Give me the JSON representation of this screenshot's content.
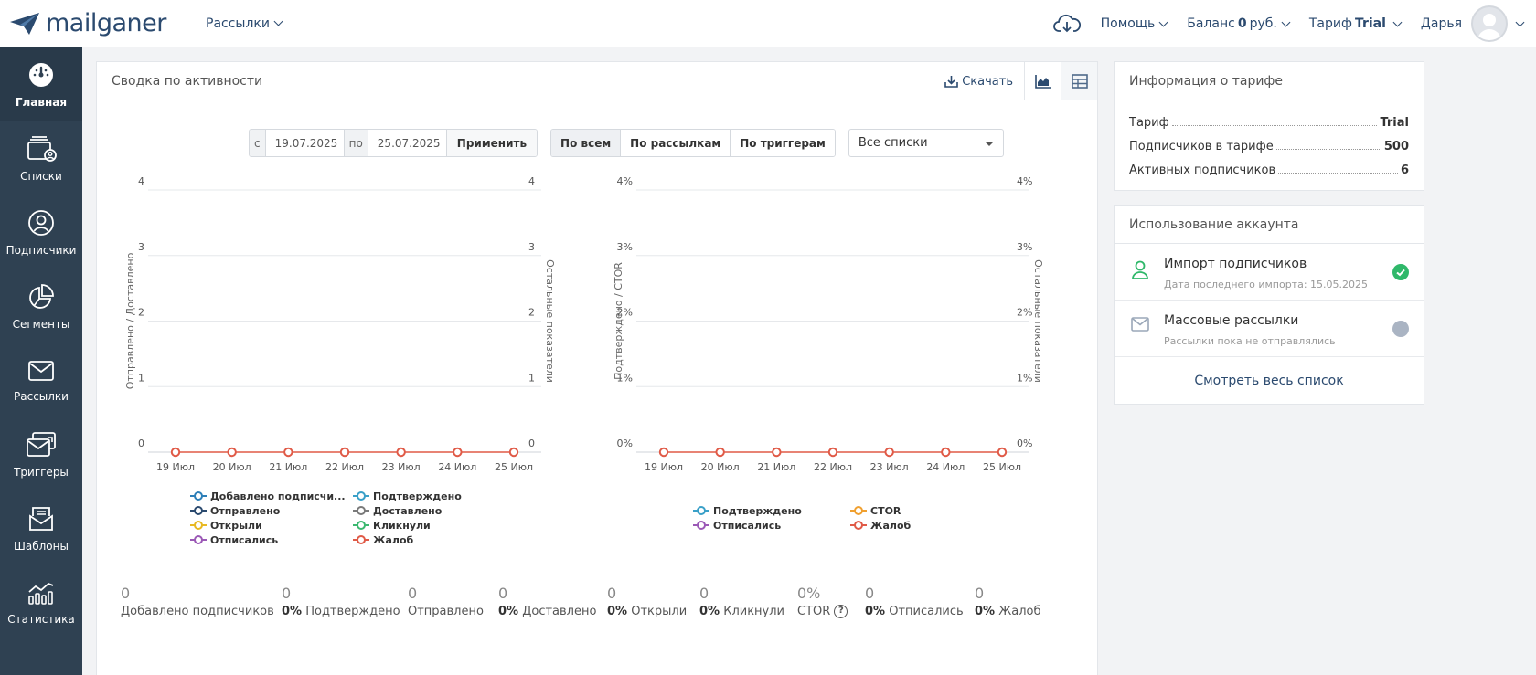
{
  "header": {
    "logo": "mailganer",
    "nav_mailings": "Рассылки",
    "help": "Помощь",
    "balance_label": "Баланс",
    "balance_value": "0",
    "balance_unit": "руб.",
    "tariff_label": "Тариф",
    "tariff_value": "Trial",
    "user": "Дарья"
  },
  "sidebar": {
    "items": [
      {
        "label": "Главная",
        "icon": "dashboard-icon",
        "active": true
      },
      {
        "label": "Списки",
        "icon": "lists-icon"
      },
      {
        "label": "Подписчики",
        "icon": "subscribers-icon"
      },
      {
        "label": "Сегменты",
        "icon": "segments-icon"
      },
      {
        "label": "Рассылки",
        "icon": "mail-icon"
      },
      {
        "label": "Триггеры",
        "icon": "triggers-icon"
      },
      {
        "label": "Шаблоны",
        "icon": "templates-icon"
      },
      {
        "label": "Статистика",
        "icon": "statistics-icon"
      }
    ]
  },
  "activity": {
    "title": "Сводка по активности",
    "download": "Скачать",
    "filters": {
      "from_label": "с",
      "from_value": "19.07.2025",
      "to_label": "по",
      "to_value": "25.07.2025",
      "apply": "Применить",
      "seg": [
        "По всем",
        "По рассылкам",
        "По триггерам"
      ],
      "list_select": "Все списки"
    },
    "legend_left": [
      {
        "label": "Добавлено подписчи...",
        "color": "#2d7fb8"
      },
      {
        "label": "Подтверждено",
        "color": "#3aa0c8"
      },
      {
        "label": "Отправлено",
        "color": "#2b4a6f"
      },
      {
        "label": "Доставлено",
        "color": "#7a7a7a"
      },
      {
        "label": "Открыли",
        "color": "#e8b923"
      },
      {
        "label": "Кликнули",
        "color": "#3cb870"
      },
      {
        "label": "Отписались",
        "color": "#9b59b6"
      },
      {
        "label": "Жалоб",
        "color": "#e05a47"
      }
    ],
    "legend_right": [
      {
        "label": "Подтверждено",
        "color": "#3aa0c8"
      },
      {
        "label": "CTOR",
        "color": "#f0a030"
      },
      {
        "label": "Отписались",
        "color": "#9b59b6"
      },
      {
        "label": "Жалоб",
        "color": "#e05a47"
      }
    ],
    "summary": [
      {
        "num": "0",
        "pct": "",
        "label": "Добавлено подписчиков"
      },
      {
        "num": "0",
        "pct": "0%",
        "label": "Подтверждено"
      },
      {
        "num": "0",
        "pct": "",
        "label": "Отправлено"
      },
      {
        "num": "0",
        "pct": "0%",
        "label": "Доставлено"
      },
      {
        "num": "0",
        "pct": "0%",
        "label": "Открыли"
      },
      {
        "num": "0",
        "pct": "0%",
        "label": "Кликнули"
      },
      {
        "num": "0%",
        "pct": "",
        "label": "CTOR",
        "help": "?"
      },
      {
        "num": "0",
        "pct": "0%",
        "label": "Отписались"
      },
      {
        "num": "0",
        "pct": "0%",
        "label": "Жалоб"
      }
    ]
  },
  "chart_data": [
    {
      "type": "line",
      "title": "",
      "x": [
        "19 Июл",
        "20 Июл",
        "21 Июл",
        "22 Июл",
        "23 Июл",
        "24 Июл",
        "25 Июл"
      ],
      "ylabel": "Отправлено / Доставлено",
      "ylabel_right": "Остальные показатели",
      "y_ticks": [
        "0",
        "1",
        "2",
        "3",
        "4"
      ],
      "y_ticks_right": [
        "0",
        "1",
        "2",
        "3",
        "4"
      ],
      "ylim": [
        0,
        4
      ],
      "grid": true,
      "series": [
        {
          "name": "Жалоб",
          "values": [
            0,
            0,
            0,
            0,
            0,
            0,
            0
          ],
          "color": "#e05a47"
        }
      ]
    },
    {
      "type": "line",
      "title": "",
      "x": [
        "19 Июл",
        "20 Июл",
        "21 Июл",
        "22 Июл",
        "23 Июл",
        "24 Июл",
        "25 Июл"
      ],
      "ylabel": "Подтверждено / CTOR",
      "ylabel_right": "Остальные показатели",
      "y_ticks": [
        "0%",
        "1%",
        "2%",
        "3%",
        "4%"
      ],
      "y_ticks_right": [
        "0%",
        "1%",
        "2%",
        "3%",
        "4%"
      ],
      "ylim": [
        0,
        4
      ],
      "grid": true,
      "series": [
        {
          "name": "Жалоб",
          "values": [
            0,
            0,
            0,
            0,
            0,
            0,
            0
          ],
          "color": "#e05a47"
        }
      ]
    }
  ],
  "tariff_info": {
    "title": "Информация о тарифе",
    "rows": [
      {
        "label": "Тариф",
        "value": "Trial"
      },
      {
        "label": "Подписчиков в тарифе",
        "value": "500"
      },
      {
        "label": "Активных подписчиков",
        "value": "6"
      }
    ]
  },
  "usage": {
    "title": "Использование аккаунта",
    "rows": [
      {
        "title": "Импорт подписчиков",
        "sub": "Дата последнего импорта: 15.05.2025",
        "status_color": "#2fb86a"
      },
      {
        "title": "Массовые рассылки",
        "sub": "Рассылки пока не отправлялись",
        "status_color": "#aab4c3"
      }
    ],
    "see_all": "Смотреть весь список"
  }
}
